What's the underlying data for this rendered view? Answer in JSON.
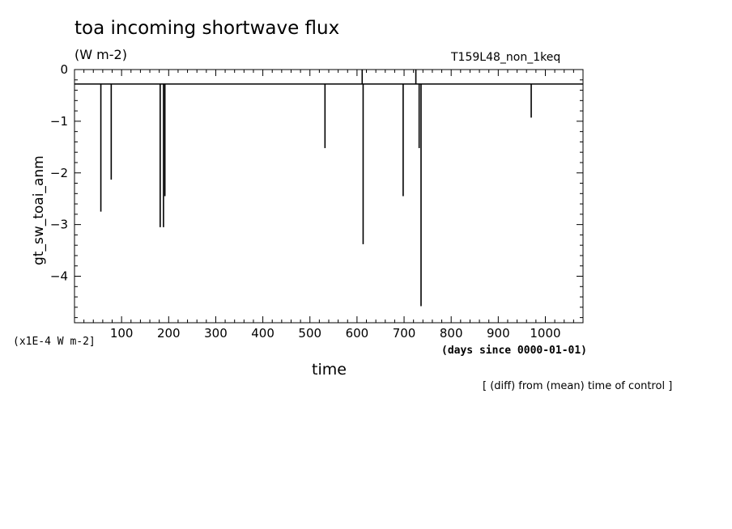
{
  "header": {
    "title": "toa incoming shortwave flux",
    "units": "(W m-2)",
    "run_id": "T159L48_non_1keq"
  },
  "axes_text": {
    "ylabel": "gt_sw_toai_anm",
    "y_scale_note": "(x1E-4 W m-2]",
    "x_units": "(days since 0000-01-01)",
    "xlabel": "time",
    "note": "[ (diff) from (mean) time of control ]"
  },
  "chart_data": {
    "type": "line",
    "title": "toa incoming shortwave flux",
    "xlabel": "time",
    "ylabel": "gt_sw_toai_anm",
    "xlim": [
      0,
      1080
    ],
    "ylim": [
      -4.9,
      0
    ],
    "x_ticks": [
      100,
      200,
      300,
      400,
      500,
      600,
      700,
      800,
      900,
      1000
    ],
    "y_ticks": [
      0,
      -1,
      -2,
      -3,
      -4
    ],
    "x_tick_labels": [
      "100",
      "200",
      "300",
      "400",
      "500",
      "600",
      "700",
      "800",
      "900",
      "1000"
    ],
    "y_tick_labels": [
      "0",
      "−1",
      "−2",
      "−3",
      "−4"
    ],
    "grid": false,
    "baseline": -0.28,
    "spikes": [
      {
        "x": 56,
        "y": -2.75
      },
      {
        "x": 78,
        "y": -2.13
      },
      {
        "x": 182,
        "y": -3.05
      },
      {
        "x": 189,
        "y": -3.05
      },
      {
        "x": 192,
        "y": -2.45
      },
      {
        "x": 532,
        "y": -1.52
      },
      {
        "x": 613,
        "y": -3.38
      },
      {
        "x": 698,
        "y": -2.45
      },
      {
        "x": 732,
        "y": -1.52
      },
      {
        "x": 736,
        "y": -4.58
      },
      {
        "x": 970,
        "y": -0.93
      }
    ],
    "up_spikes": [
      {
        "x": 611,
        "y": 0
      },
      {
        "x": 725,
        "y": 0
      }
    ]
  }
}
